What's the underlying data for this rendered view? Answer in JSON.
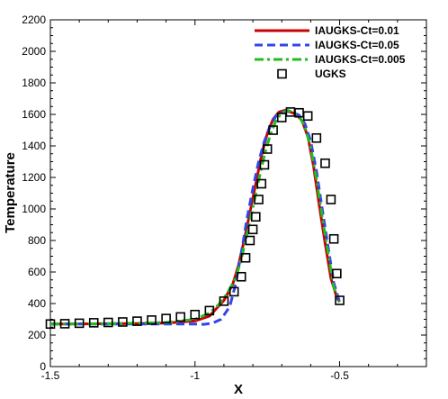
{
  "chart_data": {
    "type": "line",
    "xlabel": "X",
    "ylabel": "Temperature",
    "xlim": [
      -1.5,
      -0.2
    ],
    "ylim": [
      0,
      2200
    ],
    "xticks": [
      -1.5,
      -1,
      -0.5
    ],
    "xtick_labels": [
      "-1.5",
      "-1",
      "-0.5"
    ],
    "yticks": [
      0,
      200,
      400,
      600,
      800,
      1000,
      1200,
      1400,
      1600,
      1800,
      2000,
      2200
    ],
    "ytick_labels": [
      "0",
      "200",
      "400",
      "600",
      "800",
      "1000",
      "1200",
      "1400",
      "1600",
      "1800",
      "2000",
      "2200"
    ],
    "grid": false,
    "legend_position": "top-right",
    "series": [
      {
        "name": "IAUGKS-Ct=0.01",
        "style": "solid",
        "color": "#cc0000",
        "x": [
          -1.5,
          -1.4,
          -1.3,
          -1.2,
          -1.1,
          -1.0,
          -0.95,
          -0.9,
          -0.87,
          -0.85,
          -0.83,
          -0.81,
          -0.79,
          -0.77,
          -0.75,
          -0.73,
          -0.71,
          -0.69,
          -0.67,
          -0.65,
          -0.63,
          -0.61,
          -0.59,
          -0.57,
          -0.55,
          -0.53,
          -0.51,
          -0.5
        ],
        "y": [
          270,
          271,
          272,
          273,
          276,
          290,
          320,
          420,
          520,
          640,
          800,
          980,
          1160,
          1340,
          1480,
          1570,
          1615,
          1625,
          1615,
          1600,
          1560,
          1460,
          1270,
          1020,
          780,
          560,
          440,
          410
        ]
      },
      {
        "name": "IAUGKS-Ct=0.05",
        "style": "dashed",
        "color": "#3344ee",
        "x": [
          -1.5,
          -1.3,
          -1.1,
          -1.0,
          -0.97,
          -0.94,
          -0.91,
          -0.88,
          -0.86,
          -0.84,
          -0.82,
          -0.8,
          -0.78,
          -0.76,
          -0.74,
          -0.72,
          -0.7,
          -0.68,
          -0.66,
          -0.64,
          -0.62,
          -0.6,
          -0.58,
          -0.56,
          -0.54,
          -0.52,
          -0.5
        ],
        "y": [
          270,
          270,
          270,
          270,
          268,
          275,
          300,
          380,
          520,
          720,
          940,
          1130,
          1300,
          1430,
          1530,
          1590,
          1615,
          1620,
          1612,
          1595,
          1540,
          1430,
          1240,
          1000,
          760,
          530,
          410
        ]
      },
      {
        "name": "IAUGKS-Ct=0.005",
        "style": "dashdot",
        "color": "#22bb22",
        "x": [
          -1.5,
          -1.4,
          -1.3,
          -1.2,
          -1.1,
          -1.0,
          -0.95,
          -0.92,
          -0.89,
          -0.86,
          -0.84,
          -0.82,
          -0.8,
          -0.78,
          -0.76,
          -0.74,
          -0.72,
          -0.7,
          -0.68,
          -0.66,
          -0.64,
          -0.62,
          -0.6,
          -0.58,
          -0.56,
          -0.54,
          -0.52,
          -0.5
        ],
        "y": [
          270,
          271,
          273,
          275,
          280,
          300,
          340,
          390,
          460,
          560,
          680,
          840,
          1010,
          1180,
          1340,
          1470,
          1560,
          1610,
          1625,
          1615,
          1590,
          1520,
          1390,
          1190,
          950,
          720,
          500,
          410
        ]
      },
      {
        "name": "UGKS",
        "style": "markers",
        "marker": "square",
        "color": "#000000",
        "x": [
          -1.5,
          -1.45,
          -1.4,
          -1.35,
          -1.3,
          -1.25,
          -1.2,
          -1.15,
          -1.1,
          -1.05,
          -1.0,
          -0.95,
          -0.9,
          -0.865,
          -0.84,
          -0.825,
          -0.81,
          -0.8,
          -0.79,
          -0.78,
          -0.77,
          -0.76,
          -0.75,
          -0.73,
          -0.7,
          -0.67,
          -0.64,
          -0.61,
          -0.58,
          -0.55,
          -0.53,
          -0.52,
          -0.51,
          -0.5
        ],
        "y": [
          270,
          272,
          275,
          278,
          280,
          283,
          288,
          295,
          305,
          315,
          330,
          355,
          415,
          475,
          570,
          690,
          800,
          870,
          950,
          1060,
          1160,
          1280,
          1380,
          1500,
          1580,
          1615,
          1610,
          1590,
          1450,
          1290,
          1060,
          810,
          590,
          420
        ]
      }
    ]
  }
}
